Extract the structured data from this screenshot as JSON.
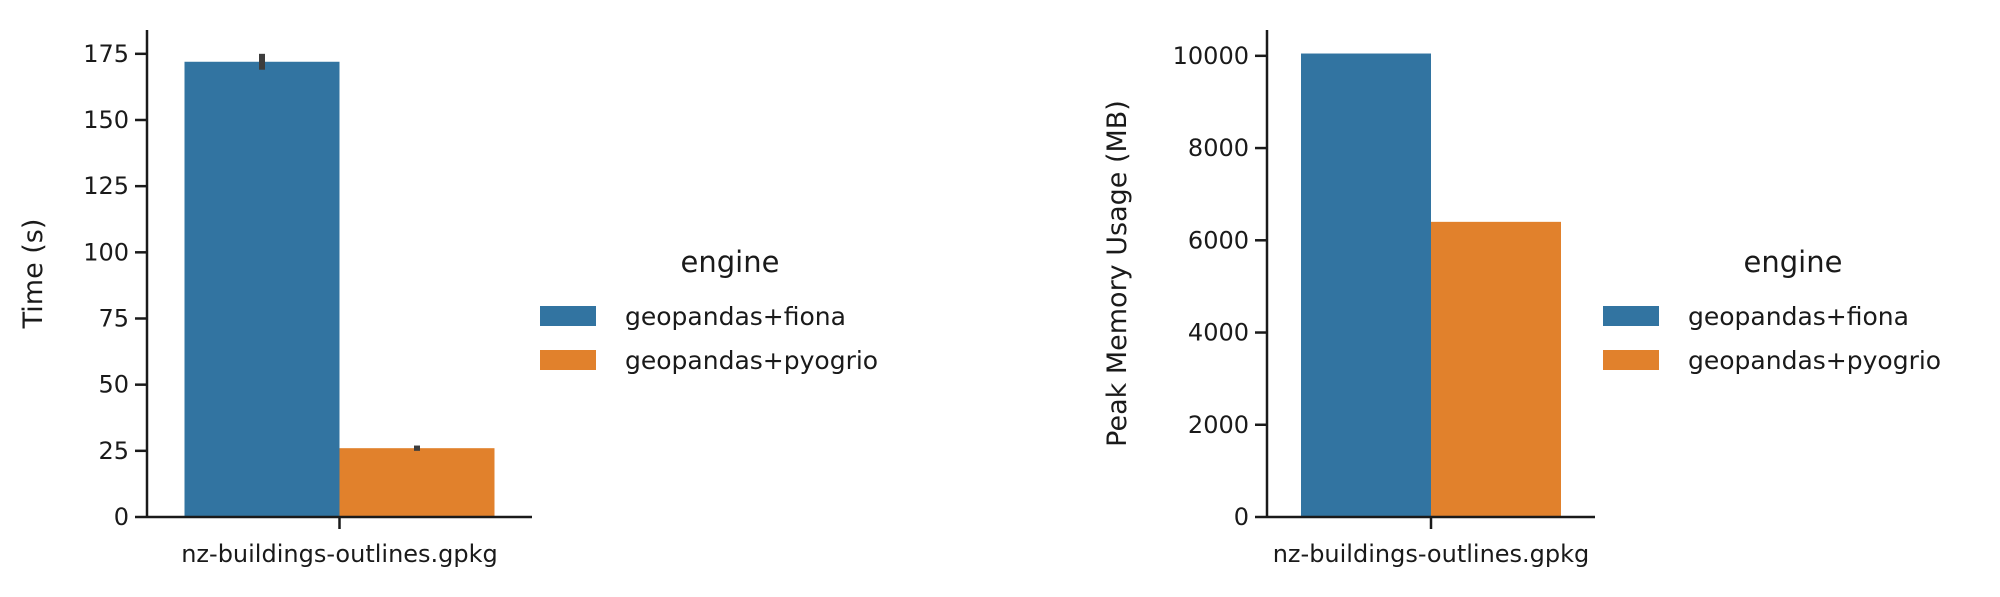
{
  "chart_data": [
    {
      "type": "bar",
      "categories": [
        "nz-buildings-outlines.gpkg"
      ],
      "series": [
        {
          "name": "geopandas+fiona",
          "values": [
            172
          ],
          "error": [
            [
              169,
              175
            ]
          ],
          "color": "#3274a1"
        },
        {
          "name": "geopandas+pyogrio",
          "values": [
            26
          ],
          "error": [
            [
              25,
              27
            ]
          ],
          "color": "#e1812c"
        }
      ],
      "ylabel": "Time (s)",
      "xlabel": "",
      "ylim": [
        0,
        184
      ],
      "yticks": [
        0,
        25,
        50,
        75,
        100,
        125,
        150,
        175
      ],
      "legend": {
        "title": "engine",
        "placement": "right"
      },
      "grid": false
    },
    {
      "type": "bar",
      "categories": [
        "nz-buildings-outlines.gpkg"
      ],
      "series": [
        {
          "name": "geopandas+fiona",
          "values": [
            10050
          ],
          "color": "#3274a1"
        },
        {
          "name": "geopandas+pyogrio",
          "values": [
            6400
          ],
          "color": "#e1812c"
        }
      ],
      "ylabel": "Peak Memory Usage (MB)",
      "xlabel": "",
      "ylim": [
        0,
        10560
      ],
      "yticks": [
        0,
        2000,
        4000,
        6000,
        8000,
        10000
      ],
      "legend": {
        "title": "engine",
        "placement": "right"
      },
      "grid": false
    }
  ]
}
